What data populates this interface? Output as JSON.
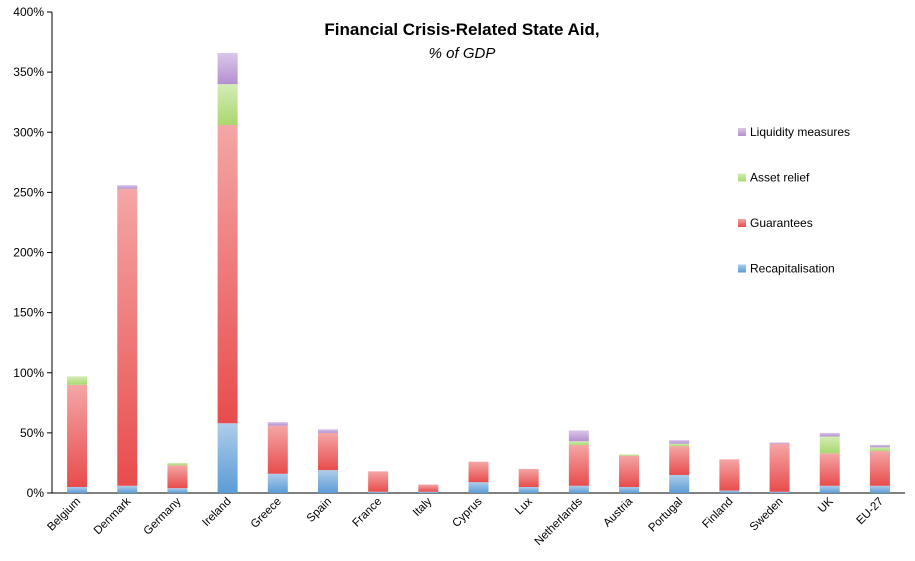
{
  "chart_data": {
    "type": "bar",
    "stacked": true,
    "title": "Financial Crisis-Related State Aid,",
    "subtitle": "% of GDP",
    "xlabel": "",
    "ylabel": "",
    "ylim": [
      0,
      400
    ],
    "ytick_step": 50,
    "ytick_labels": [
      "0%",
      "50%",
      "100%",
      "150%",
      "200%",
      "250%",
      "300%",
      "350%",
      "400%"
    ],
    "grid": false,
    "legend_position": "right",
    "categories": [
      "Belgium",
      "Denmark",
      "Germany",
      "Ireland",
      "Greece",
      "Spain",
      "France",
      "Italy",
      "Cyprus",
      "Lux",
      "Netherlands",
      "Austria",
      "Portugal",
      "Finland",
      "Sweden",
      "UK",
      "EU-27"
    ],
    "series": [
      {
        "name": "Recapitalisation",
        "color": "#5b9bd5",
        "values": [
          5,
          6,
          4,
          58,
          16,
          19,
          1,
          1,
          9,
          5,
          6,
          5,
          15,
          2,
          1,
          6,
          6
        ]
      },
      {
        "name": "Guarantees",
        "color": "#e84c4c",
        "values": [
          85,
          247,
          19,
          248,
          40,
          31,
          17,
          6,
          17,
          15,
          34,
          26,
          24,
          26,
          40,
          27,
          29
        ]
      },
      {
        "name": "Asset relief",
        "color": "#a9d86e",
        "values": [
          7,
          0,
          2,
          34,
          0,
          0,
          0,
          0,
          0,
          0,
          3,
          1,
          2,
          0,
          0,
          14,
          3
        ]
      },
      {
        "name": "Liquidity measures",
        "color": "#b48fd1",
        "values": [
          0,
          3,
          0,
          26,
          3,
          3,
          0,
          0,
          0,
          0,
          9,
          0,
          3,
          0,
          1,
          3,
          2
        ]
      }
    ]
  }
}
